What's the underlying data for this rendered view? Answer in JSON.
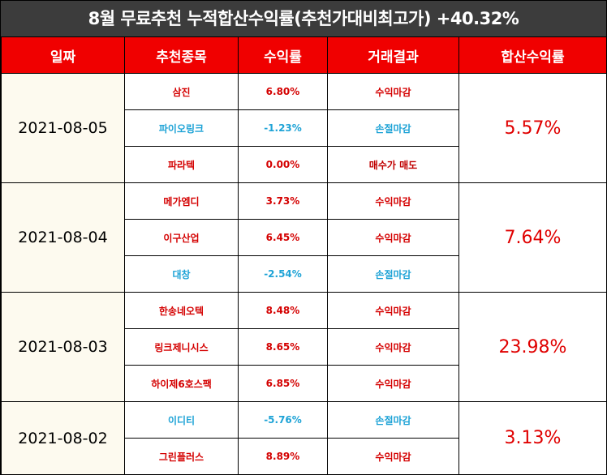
{
  "title": "8월 무료추천 누적합산수익률(추천가대비최고가) +40.32%",
  "colors": {
    "header_bg": "#f00000",
    "title_bg": "#3c3c3c",
    "profit": "#d40000",
    "loss": "#1ea3d6",
    "date_bg": "#fdfaef"
  },
  "headers": {
    "date": "일짜",
    "stock": "추천종목",
    "return": "수익률",
    "result": "거래결과",
    "sum": "합산수익률"
  },
  "groups": [
    {
      "date": "2021-08-05",
      "sum": "5.57%",
      "rows": [
        {
          "stock": "삼진",
          "ret": "6.80%",
          "result": "수익마감",
          "tone": "red"
        },
        {
          "stock": "파이오링크",
          "ret": "-1.23%",
          "result": "손절마감",
          "tone": "blue"
        },
        {
          "stock": "파라텍",
          "ret": "0.00%",
          "result": "매수가 매도",
          "tone": "red"
        }
      ]
    },
    {
      "date": "2021-08-04",
      "sum": "7.64%",
      "rows": [
        {
          "stock": "메가엠디",
          "ret": "3.73%",
          "result": "수익마감",
          "tone": "red"
        },
        {
          "stock": "이구산업",
          "ret": "6.45%",
          "result": "수익마감",
          "tone": "red"
        },
        {
          "stock": "대창",
          "ret": "-2.54%",
          "result": "손절마감",
          "tone": "blue"
        }
      ]
    },
    {
      "date": "2021-08-03",
      "sum": "23.98%",
      "rows": [
        {
          "stock": "한송네오텍",
          "ret": "8.48%",
          "result": "수익마감",
          "tone": "red"
        },
        {
          "stock": "링크제니시스",
          "ret": "8.65%",
          "result": "수익마감",
          "tone": "red"
        },
        {
          "stock": "하이제6호스팩",
          "ret": "6.85%",
          "result": "수익마감",
          "tone": "red"
        }
      ]
    },
    {
      "date": "2021-08-02",
      "sum": "3.13%",
      "rows": [
        {
          "stock": "이디티",
          "ret": "-5.76%",
          "result": "손절마감",
          "tone": "blue"
        },
        {
          "stock": "그린플러스",
          "ret": "8.89%",
          "result": "수익마감",
          "tone": "red"
        }
      ]
    }
  ]
}
